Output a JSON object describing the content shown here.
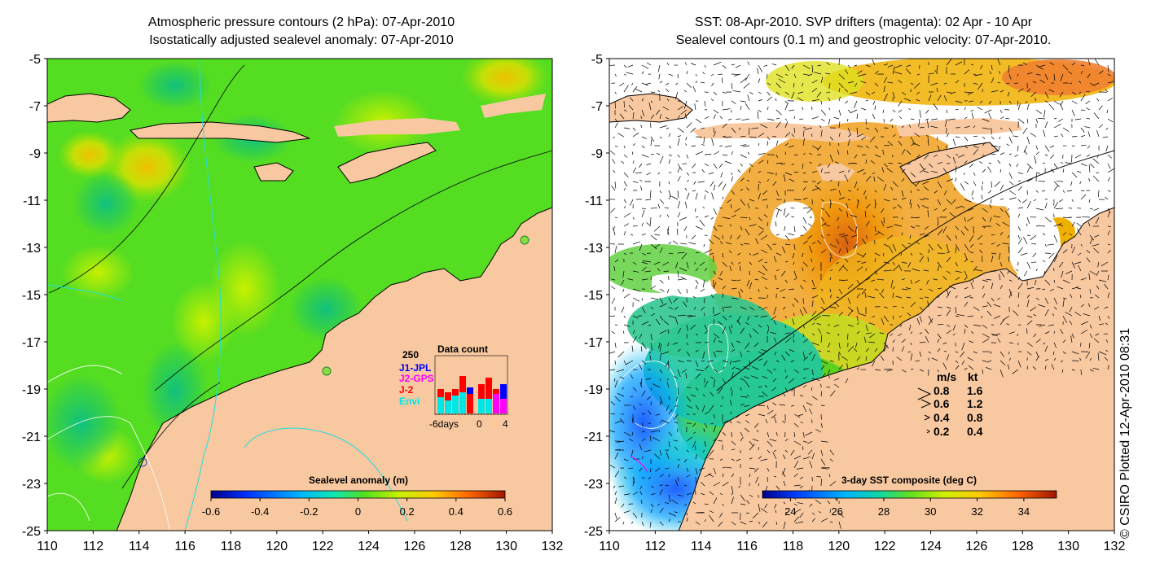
{
  "left_panel": {
    "title_line1": "Atmospheric pressure contours (2 hPa): 07-Apr-2010",
    "title_line2": "Isostatically adjusted sealevel anomaly: 07-Apr-2010",
    "y_ticks": [
      "-5",
      "-7",
      "-9",
      "-11",
      "-13",
      "-15",
      "-17",
      "-19",
      "-21",
      "-23",
      "-25"
    ],
    "x_ticks": [
      "110",
      "112",
      "114",
      "116",
      "118",
      "120",
      "122",
      "124",
      "126",
      "128",
      "130",
      "132"
    ],
    "colorbar": {
      "label": "Sealevel anomaly (m)",
      "ticks": [
        "-0.6",
        "-0.4",
        "-0.2",
        "0",
        "0.2",
        "0.4",
        "0.6"
      ],
      "range": [
        -0.6,
        0.6
      ]
    },
    "data_count": {
      "title": "Data count",
      "max_label": "250",
      "missions": [
        {
          "name": "J1-JPL",
          "color": "#0000ff"
        },
        {
          "name": "J2-GPS",
          "color": "#ff00ff"
        },
        {
          "name": "J-2",
          "color": "#ff0000"
        },
        {
          "name": "Envi",
          "color": "#00e5e5"
        }
      ],
      "x_start_label": "-6days",
      "x_mid_label": "0",
      "x_end_label": "4"
    }
  },
  "right_panel": {
    "title_line1": "SST: 08-Apr-2010. SVP drifters (magenta): 02 Apr - 10 Apr",
    "title_line2": "Sealevel contours (0.1 m) and geostrophic velocity: 07-Apr-2010.",
    "y_ticks": [
      "-5",
      "-7",
      "-9",
      "-11",
      "-13",
      "-15",
      "-17",
      "-19",
      "-21",
      "-23",
      "-25"
    ],
    "x_ticks": [
      "110",
      "112",
      "114",
      "116",
      "118",
      "120",
      "122",
      "124",
      "126",
      "128",
      "130",
      "132"
    ],
    "colorbar": {
      "label": "3-day SST composite (deg C)",
      "ticks": [
        "24",
        "26",
        "28",
        "30",
        "32",
        "34"
      ],
      "range": [
        22.8,
        35.4
      ]
    },
    "velocity_legend": {
      "header_ms": "m/s",
      "header_kt": "kt",
      "rows": [
        {
          "ms": "0.8",
          "kt": "1.6"
        },
        {
          "ms": "0.6",
          "kt": "1.2"
        },
        {
          "ms": "0.4",
          "kt": "0.8"
        },
        {
          "ms": "0.2",
          "kt": "0.4"
        }
      ]
    }
  },
  "credit": "© CSIRO Plotted 12-Apr-2010 08:31",
  "colors": {
    "land": "#f8c8a0",
    "sea_green": "#55dd22",
    "coast": "#000000",
    "contour_cyan": "#22dddd"
  }
}
